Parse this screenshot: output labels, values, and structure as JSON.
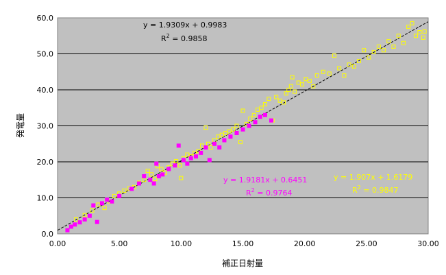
{
  "chart_data": {
    "type": "scatter",
    "title": "",
    "xlabel": "補正日射量",
    "ylabel": "発電量",
    "xlim": [
      0,
      30
    ],
    "ylim": [
      0,
      60
    ],
    "x_ticks": [
      "0.00",
      "5.00",
      "10.00",
      "15.00",
      "20.00",
      "25.00",
      "30.00"
    ],
    "y_ticks": [
      "0.0",
      "10.0",
      "20.0",
      "30.0",
      "40.0",
      "50.0",
      "60.0"
    ],
    "grid": "horizontal",
    "plot_background": "#c0c0c0",
    "annotations": [
      {
        "line1": "y = 1.9309x + 0.9983",
        "line2_prefix": "R",
        "line2_sup": "2",
        "line2_suffix": " = 0.9858",
        "color": "#000000"
      },
      {
        "line1": "y = 1.9181x + 0.6451",
        "line2_prefix": "R",
        "line2_sup": "2",
        "line2_suffix": " = 0.9764",
        "color": "#ff00ff"
      },
      {
        "line1": "y = 1.907x + 1.6179",
        "line2_prefix": "R",
        "line2_sup": "2",
        "line2_suffix": " = 0.9847",
        "color": "#ffff00"
      }
    ],
    "trendline": {
      "slope": 1.9309,
      "intercept": 0.9983,
      "x_range": [
        0,
        30
      ],
      "color": "#000000",
      "style": "dashed"
    },
    "series": [
      {
        "marker": "open-square",
        "color": "#ffff00",
        "points": [
          [
            1.5,
            4.0
          ],
          [
            2.2,
            5.2
          ],
          [
            2.8,
            6.5
          ],
          [
            3.3,
            8.1
          ],
          [
            3.8,
            7.2
          ],
          [
            4.2,
            9.0
          ],
          [
            4.6,
            10.5
          ],
          [
            5.0,
            11.2
          ],
          [
            5.4,
            12.0
          ],
          [
            5.8,
            12.6
          ],
          [
            6.2,
            13.0
          ],
          [
            6.6,
            14.2
          ],
          [
            7.0,
            15.0
          ],
          [
            7.3,
            17.5
          ],
          [
            7.6,
            16.5
          ],
          [
            7.9,
            15.2
          ],
          [
            8.1,
            18.8
          ],
          [
            8.4,
            18.0
          ],
          [
            8.7,
            17.0
          ],
          [
            9.0,
            18.5
          ],
          [
            9.3,
            19.5
          ],
          [
            9.6,
            20.2
          ],
          [
            9.9,
            19.0
          ],
          [
            10.0,
            15.5
          ],
          [
            10.2,
            21.0
          ],
          [
            10.5,
            22.0
          ],
          [
            10.8,
            21.5
          ],
          [
            11.1,
            22.5
          ],
          [
            11.4,
            23.0
          ],
          [
            11.7,
            24.5
          ],
          [
            12.0,
            29.5
          ],
          [
            12.2,
            25.0
          ],
          [
            12.4,
            24.0
          ],
          [
            12.7,
            26.0
          ],
          [
            13.0,
            27.0
          ],
          [
            13.3,
            27.5
          ],
          [
            13.6,
            28.0
          ],
          [
            13.9,
            28.5
          ],
          [
            14.2,
            29.0
          ],
          [
            14.5,
            30.0
          ],
          [
            14.8,
            25.5
          ],
          [
            15.0,
            34.2
          ],
          [
            15.3,
            30.5
          ],
          [
            15.6,
            32.0
          ],
          [
            15.9,
            33.0
          ],
          [
            16.2,
            34.5
          ],
          [
            16.5,
            35.0
          ],
          [
            16.8,
            36.0
          ],
          [
            17.1,
            37.5
          ],
          [
            17.4,
            31.5
          ],
          [
            17.7,
            38.0
          ],
          [
            18.0,
            37.0
          ],
          [
            18.3,
            36.5
          ],
          [
            18.5,
            39.0
          ],
          [
            18.7,
            40.0
          ],
          [
            18.9,
            41.0
          ],
          [
            19.0,
            43.5
          ],
          [
            19.2,
            39.5
          ],
          [
            19.5,
            42.0
          ],
          [
            19.8,
            41.5
          ],
          [
            20.1,
            43.0
          ],
          [
            20.4,
            42.5
          ],
          [
            20.7,
            41.0
          ],
          [
            21.0,
            44.0
          ],
          [
            21.5,
            45.0
          ],
          [
            22.0,
            44.5
          ],
          [
            22.4,
            49.5
          ],
          [
            22.8,
            46.0
          ],
          [
            23.2,
            44.0
          ],
          [
            23.6,
            47.0
          ],
          [
            24.0,
            46.5
          ],
          [
            24.4,
            48.0
          ],
          [
            24.8,
            51.0
          ],
          [
            25.2,
            49.0
          ],
          [
            25.6,
            50.5
          ],
          [
            26.0,
            52.0
          ],
          [
            26.4,
            51.0
          ],
          [
            26.8,
            53.5
          ],
          [
            27.2,
            52.0
          ],
          [
            27.6,
            55.0
          ],
          [
            28.0,
            53.0
          ],
          [
            28.4,
            57.5
          ],
          [
            28.7,
            58.5
          ],
          [
            29.0,
            55.0
          ],
          [
            29.3,
            56.0
          ],
          [
            29.6,
            54.5
          ],
          [
            29.7,
            56.2
          ]
        ]
      },
      {
        "marker": "filled-square",
        "color": "#ff00ff",
        "points": [
          [
            0.8,
            1.0
          ],
          [
            1.1,
            2.0
          ],
          [
            1.4,
            2.6
          ],
          [
            1.8,
            3.2
          ],
          [
            2.2,
            4.0
          ],
          [
            2.6,
            5.0
          ],
          [
            2.9,
            7.9
          ],
          [
            3.2,
            3.3
          ],
          [
            3.6,
            8.5
          ],
          [
            4.0,
            9.5
          ],
          [
            4.4,
            9.0
          ],
          [
            5.0,
            10.5
          ],
          [
            6.0,
            12.5
          ],
          [
            6.6,
            14.0
          ],
          [
            7.0,
            16.0
          ],
          [
            7.5,
            15.0
          ],
          [
            7.8,
            14.0
          ],
          [
            8.0,
            19.5
          ],
          [
            8.2,
            16.0
          ],
          [
            8.5,
            16.5
          ],
          [
            9.0,
            18.0
          ],
          [
            9.5,
            19.0
          ],
          [
            9.8,
            24.5
          ],
          [
            10.2,
            20.5
          ],
          [
            10.5,
            19.5
          ],
          [
            10.8,
            21.0
          ],
          [
            11.2,
            21.5
          ],
          [
            11.6,
            22.5
          ],
          [
            12.0,
            24.0
          ],
          [
            12.3,
            20.5
          ],
          [
            12.7,
            25.0
          ],
          [
            13.1,
            24.0
          ],
          [
            13.5,
            26.0
          ],
          [
            14.0,
            27.0
          ],
          [
            14.5,
            28.0
          ],
          [
            15.0,
            29.0
          ],
          [
            15.5,
            30.0
          ],
          [
            16.0,
            31.0
          ],
          [
            16.4,
            32.5
          ],
          [
            16.8,
            33.0
          ],
          [
            17.3,
            31.5
          ]
        ]
      }
    ]
  }
}
